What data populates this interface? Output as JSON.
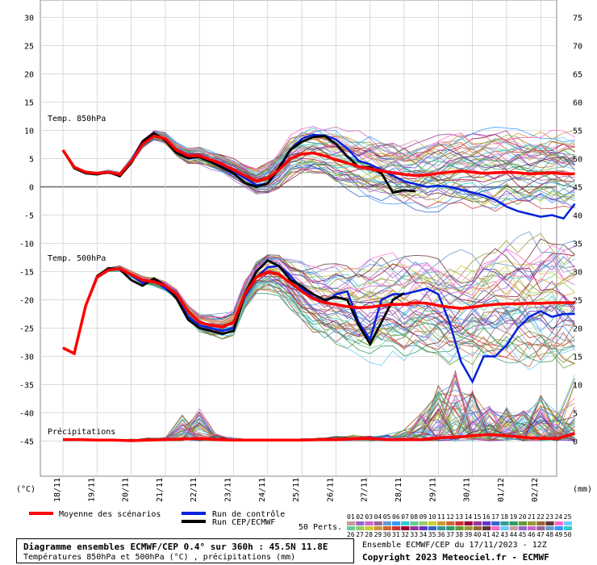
{
  "chart_data": {
    "type": "line",
    "x_dates": [
      "18/11",
      "19/11",
      "20/11",
      "21/11",
      "22/11",
      "23/11",
      "24/11",
      "25/11",
      "26/11",
      "27/11",
      "28/11",
      "29/11",
      "30/11",
      "01/12",
      "02/12"
    ],
    "left_axis": {
      "unit": "(°C)",
      "ticks": [
        30,
        25,
        20,
        15,
        10,
        5,
        0,
        -5,
        -10,
        -15,
        -20,
        -25,
        -30,
        -35,
        -40,
        -45
      ]
    },
    "right_axis": {
      "unit": "(mm)",
      "ticks": [
        75,
        70,
        65,
        60,
        55,
        50,
        45,
        40,
        35,
        30,
        25,
        20,
        15,
        10,
        5,
        0
      ]
    },
    "panels": [
      {
        "label": "Temp. 850hPa",
        "x": [
          0,
          0.33,
          0.67,
          1,
          1.33,
          1.67,
          2,
          2.33,
          2.67,
          3,
          3.33,
          3.67,
          4,
          4.33,
          4.67,
          5,
          5.33,
          5.67,
          6,
          6.33,
          6.67,
          7,
          7.33,
          7.67,
          8,
          8.33,
          8.67,
          9,
          9.33,
          9.67,
          10,
          10.33,
          10.67,
          11,
          11.33,
          11.67,
          12,
          12.33,
          12.67,
          13,
          13.33,
          13.67,
          14,
          14.33,
          14.67,
          15
        ],
        "mean": [
          6.5,
          3.5,
          2.6,
          2.4,
          2.6,
          2.2,
          4.5,
          7.5,
          9,
          8.5,
          6.5,
          5.5,
          5.5,
          4.8,
          4,
          3,
          2,
          1,
          1.5,
          3,
          5,
          5.8,
          6,
          5.5,
          4.8,
          4.2,
          3.6,
          3.2,
          2.8,
          2.5,
          2.2,
          2.0,
          2.1,
          2.4,
          2.6,
          2.8,
          2.6,
          2.4,
          2.5,
          2.6,
          2.5,
          2.3,
          2.4,
          2.5,
          2.3,
          2.3
        ],
        "control": [
          6.5,
          3.5,
          2.6,
          2.3,
          2.5,
          2.1,
          4.6,
          8,
          9.2,
          8.4,
          6.5,
          5.3,
          5.6,
          4.6,
          3.6,
          2.7,
          1.6,
          0.3,
          0.6,
          3,
          6.6,
          8.5,
          9.2,
          9.1,
          8.4,
          6.8,
          4.6,
          4.0,
          3.0,
          2.0,
          1.0,
          0.5,
          0.0,
          0.2,
          0.0,
          -0.5,
          -1.0,
          -1.5,
          -2.3,
          -3.5,
          -4.3,
          -4.8,
          -5.3,
          -5.0,
          -5.6,
          -3.0
        ],
        "deterministic": [
          6.5,
          3.3,
          2.4,
          2.2,
          2.6,
          1.9,
          4.2,
          8,
          9.5,
          8.2,
          6.0,
          5.1,
          5.3,
          4.4,
          3.4,
          2.4,
          0.7,
          0.0,
          0.6,
          3.4,
          6.6,
          8.0,
          8.8,
          9.0,
          7.6,
          5.4,
          3.5,
          3.5,
          2.4,
          -1.0,
          -0.6,
          -0.8
        ],
        "spread": [
          0.0,
          0.1,
          0.2,
          0.2,
          0.3,
          0.3,
          0.5,
          0.6,
          0.8,
          1.0,
          1.2,
          1.3,
          1.4,
          1.5,
          1.5,
          1.6,
          1.8,
          2.0,
          2.4,
          2.8,
          3.2,
          3.5,
          3.8,
          4.0,
          4.2,
          4.4,
          4.6,
          4.8,
          5.0,
          5.0,
          5.0,
          5.1,
          5.2,
          5.2,
          5.3,
          5.3,
          5.4,
          5.4,
          5.5,
          5.5,
          5.6,
          5.6,
          5.6,
          5.7,
          5.7,
          5.8
        ]
      },
      {
        "label": "Temp. 500hPa",
        "x": [
          0,
          0.33,
          0.67,
          1,
          1.33,
          1.67,
          2,
          2.33,
          2.67,
          3,
          3.33,
          3.67,
          4,
          4.33,
          4.67,
          5,
          5.33,
          5.67,
          6,
          6.33,
          6.67,
          7,
          7.33,
          7.67,
          8,
          8.33,
          8.67,
          9,
          9.33,
          9.67,
          10,
          10.33,
          10.67,
          11,
          11.33,
          11.67,
          12,
          12.33,
          12.67,
          13,
          13.33,
          13.67,
          14,
          14.33,
          14.67,
          15
        ],
        "mean": [
          -28.5,
          -29.5,
          -21,
          -16,
          -14.7,
          -14.5,
          -15.5,
          -16.5,
          -16.8,
          -17.5,
          -19,
          -22,
          -24,
          -24.5,
          -24.8,
          -24,
          -19,
          -16,
          -15,
          -15.5,
          -17,
          -18.5,
          -19.8,
          -20.5,
          -20.8,
          -21.2,
          -21.4,
          -21.3,
          -21.0,
          -20.8,
          -20.8,
          -20.5,
          -20.6,
          -21.0,
          -21.3,
          -21.5,
          -21.3,
          -21.0,
          -20.8,
          -20.7,
          -20.7,
          -20.6,
          -20.6,
          -20.5,
          -20.5,
          -20.5
        ],
        "control": [
          -28.5,
          -29.5,
          -21,
          -16,
          -14.6,
          -14.4,
          -15.6,
          -17,
          -16.4,
          -18,
          -19.5,
          -23,
          -24.5,
          -25,
          -25.5,
          -25,
          -19.5,
          -16,
          -14.2,
          -14,
          -15.8,
          -18.0,
          -19.6,
          -20.4,
          -19.0,
          -18.5,
          -24.0,
          -27.0,
          -20.0,
          -19.0,
          -19.0,
          -18.5,
          -18.0,
          -19.0,
          -24.0,
          -31.0,
          -34.5,
          -30.0,
          -30.0,
          -28.0,
          -25.0,
          -23.0,
          -22.0,
          -23.0,
          -22.5,
          -22.5
        ],
        "deterministic": [
          -28.5,
          -29.5,
          -21,
          -15.8,
          -14.4,
          -14.6,
          -16.5,
          -17.5,
          -16.2,
          -17.5,
          -19.8,
          -23.5,
          -25.0,
          -25.5,
          -26.0,
          -25.5,
          -19.0,
          -15.0,
          -13.0,
          -14.0,
          -16.5,
          -17.6,
          -19.0,
          -20.0,
          -19.5,
          -20.0,
          -24.5,
          -27.8,
          -24.0,
          -20.0,
          -18.8
        ],
        "spread": [
          0.0,
          0.1,
          0.2,
          0.3,
          0.3,
          0.4,
          0.5,
          0.6,
          0.7,
          0.8,
          1.0,
          1.2,
          1.4,
          1.6,
          1.8,
          2.0,
          2.4,
          2.8,
          3.2,
          3.6,
          4.0,
          4.6,
          5.0,
          5.4,
          5.8,
          6.2,
          6.6,
          7.0,
          7.2,
          7.4,
          7.6,
          7.8,
          8.0,
          8.2,
          8.4,
          8.6,
          8.8,
          9.0,
          9.2,
          9.4,
          9.6,
          9.8,
          10.0,
          10.0,
          10.2,
          10.4
        ]
      },
      {
        "label": "Précipitations",
        "x": [
          0,
          0.5,
          1,
          1.5,
          2,
          2.5,
          3,
          3.5,
          4,
          4.5,
          5,
          5.5,
          6,
          6.5,
          7,
          7.5,
          8,
          8.5,
          9,
          9.5,
          10,
          10.5,
          11,
          11.5,
          12,
          12.5,
          13,
          13.5,
          14,
          14.5,
          15
        ],
        "mean_mm": [
          0.2,
          0.2,
          0.1,
          0.1,
          0,
          0.1,
          0.2,
          0.3,
          0.4,
          0.2,
          0.1,
          0.1,
          0.1,
          0.1,
          0.1,
          0.2,
          0.2,
          0.3,
          0.4,
          0.2,
          0.2,
          0.2,
          0.5,
          0.6,
          0.9,
          1.1,
          0.9,
          0.6,
          0.4,
          0.4,
          1.3
        ],
        "member_peak_mm": [
          0.4,
          0.3,
          0.2,
          0.2,
          0.3,
          0.5,
          0.6,
          5,
          5.8,
          1.2,
          0.5,
          0.3,
          0.3,
          0.3,
          0.4,
          0.5,
          0.8,
          1.0,
          0.8,
          1.2,
          2.0,
          5.0,
          10.0,
          12.5,
          9.0,
          6.5,
          6.0,
          5.5,
          8.5,
          5.0,
          12.0
        ]
      }
    ],
    "legend": {
      "mean": "Moyenne des scénarios",
      "control": "Run de contrôle",
      "deterministic": "Run CEP/ECMWF",
      "perts": "50 Perts."
    },
    "colors": {
      "mean": "#ff0000",
      "control": "#0022dd",
      "deterministic": "#000000",
      "members": [
        "#cc9999",
        "#9966cc",
        "#cc66cc",
        "#996699",
        "#6699cc",
        "#3399ff",
        "#33cccc",
        "#66cc99",
        "#99cc66",
        "#cccc33",
        "#cc9933",
        "#cc6633",
        "#cc3333",
        "#990033",
        "#993399",
        "#6633cc",
        "#3366cc",
        "#339999",
        "#339966",
        "#669933",
        "#999933",
        "#996633",
        "#663333",
        "#ff66cc",
        "#66ccff"
      ]
    }
  },
  "pert_top_row": [
    "01",
    "02",
    "03",
    "04",
    "05",
    "06",
    "07",
    "08",
    "09",
    "10",
    "11",
    "12",
    "13",
    "14",
    "15",
    "16",
    "17",
    "18",
    "19",
    "20",
    "21",
    "22",
    "23",
    "24",
    "25"
  ],
  "pert_bottom_row": [
    "26",
    "27",
    "28",
    "29",
    "30",
    "31",
    "32",
    "33",
    "34",
    "35",
    "36",
    "37",
    "38",
    "39",
    "40",
    "41",
    "42",
    "43",
    "44",
    "45",
    "46",
    "47",
    "48",
    "49",
    "50"
  ],
  "footer": {
    "title": "Diagramme ensembles ECMWF/CEP 0.4° sur 360h : 45.5N 11.8E",
    "subtitle": "Températures 850hPa et 500hPa (°C) , précipitations (mm)",
    "run": "Ensemble ECMWF/CEP du 17/11/2023 - 12Z",
    "copyright": "Copyright 2023 Meteociel.fr - ECMWF"
  }
}
